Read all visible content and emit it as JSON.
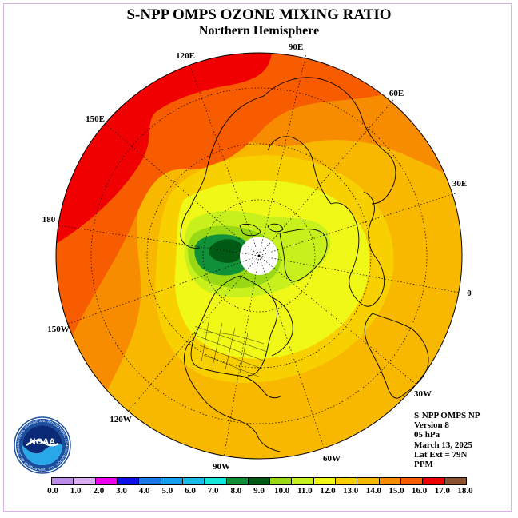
{
  "title": "S-NPP OMPS OZONE MIXING RATIO",
  "subtitle": "Northern Hemisphere",
  "lon_labels": [
    "90E",
    "60E",
    "30E",
    "0",
    "30W",
    "60W",
    "90W",
    "120W",
    "150W",
    "180",
    "150E",
    "120E"
  ],
  "info": {
    "line1": "S-NPP OMPS NP",
    "line2": "Version 8",
    "line3": "05 hPa",
    "line4": "March 13, 2025",
    "line5": "Lat Ext = 79N",
    "line6": "PPM"
  },
  "logo_text": "NOAA",
  "logo_ring_text": "NATIONAL OCEANIC AND ATMOSPHERIC ADMINISTRATION · U.S. DEPARTMENT OF COMMERCE",
  "colorbar": {
    "colors": [
      "#b98ce8",
      "#d8aef0",
      "#f000f0",
      "#1010e8",
      "#1878e8",
      "#14a0f0",
      "#18bce8",
      "#14e8d8",
      "#109038",
      "#005a14",
      "#98d814",
      "#c8f01c",
      "#f0f818",
      "#f8d000",
      "#f8b800",
      "#f88c00",
      "#f85c00",
      "#f00000",
      "#8a5230"
    ],
    "ticks": [
      "0.0",
      "1.0",
      "2.0",
      "3.0",
      "4.0",
      "5.0",
      "6.0",
      "7.0",
      "8.0",
      "9.0",
      "10.0",
      "11.0",
      "12.0",
      "13.0",
      "14.0",
      "15.0",
      "16.0",
      "17.0",
      "18.0"
    ]
  }
}
